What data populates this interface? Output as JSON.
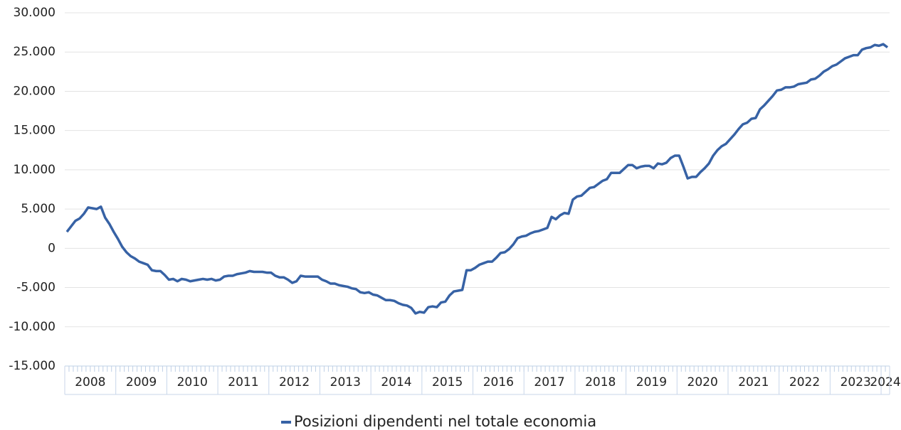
{
  "chart_data": {
    "type": "line",
    "categories": [
      "2008",
      null,
      null,
      null,
      null,
      null,
      null,
      null,
      null,
      null,
      null,
      null,
      "2009",
      null,
      null,
      null,
      null,
      null,
      null,
      null,
      null,
      null,
      null,
      null,
      "2010",
      null,
      null,
      null,
      null,
      null,
      null,
      null,
      null,
      null,
      null,
      null,
      "2011",
      null,
      null,
      null,
      null,
      null,
      null,
      null,
      null,
      null,
      null,
      null,
      "2012",
      null,
      null,
      null,
      null,
      null,
      null,
      null,
      null,
      null,
      null,
      null,
      "2013",
      null,
      null,
      null,
      null,
      null,
      null,
      null,
      null,
      null,
      null,
      null,
      "2014",
      null,
      null,
      null,
      null,
      null,
      null,
      null,
      null,
      null,
      null,
      null,
      "2015",
      null,
      null,
      null,
      null,
      null,
      null,
      null,
      null,
      null,
      null,
      null,
      "2016",
      null,
      null,
      null,
      null,
      null,
      null,
      null,
      null,
      null,
      null,
      null,
      "2017",
      null,
      null,
      null,
      null,
      null,
      null,
      null,
      null,
      null,
      null,
      null,
      "2018",
      null,
      null,
      null,
      null,
      null,
      null,
      null,
      null,
      null,
      null,
      null,
      "2019",
      null,
      null,
      null,
      null,
      null,
      null,
      null,
      null,
      null,
      null,
      null,
      "2020",
      null,
      null,
      null,
      null,
      null,
      null,
      null,
      null,
      null,
      null,
      null,
      "2021",
      null,
      null,
      null,
      null,
      null,
      null,
      null,
      null,
      null,
      null,
      null,
      "2022",
      null,
      null,
      null,
      null,
      null,
      null,
      null,
      null,
      null,
      null,
      null,
      "2023",
      null,
      null,
      null,
      null,
      null,
      null,
      null,
      null,
      null,
      null,
      null,
      "2024",
      null
    ],
    "series": [
      {
        "name": "Posizioni dipendenti nel totale economia",
        "color": "#3762a5",
        "values": [
          2100,
          2800,
          3500,
          3800,
          4400,
          5200,
          5100,
          5000,
          5300,
          3900,
          3100,
          2100,
          1200,
          200,
          -500,
          -1000,
          -1300,
          -1700,
          -1900,
          -2100,
          -2800,
          -2900,
          -2900,
          -3400,
          -4000,
          -3900,
          -4200,
          -3900,
          -4000,
          -4200,
          -4100,
          -4000,
          -3900,
          -4000,
          -3900,
          -4100,
          -4000,
          -3600,
          -3500,
          -3500,
          -3300,
          -3200,
          -3100,
          -2900,
          -3000,
          -3000,
          -3000,
          -3100,
          -3100,
          -3500,
          -3700,
          -3700,
          -4000,
          -4400,
          -4200,
          -3500,
          -3600,
          -3600,
          -3600,
          -3600,
          -4000,
          -4200,
          -4500,
          -4500,
          -4700,
          -4800,
          -4900,
          -5100,
          -5200,
          -5600,
          -5700,
          -5600,
          -5900,
          -6000,
          -6300,
          -6600,
          -6600,
          -6700,
          -7000,
          -7200,
          -7300,
          -7600,
          -8300,
          -8100,
          -8200,
          -7500,
          -7400,
          -7500,
          -6900,
          -6800,
          -6000,
          -5500,
          -5400,
          -5300,
          -2800,
          -2800,
          -2500,
          -2100,
          -1900,
          -1700,
          -1700,
          -1200,
          -600,
          -500,
          -100,
          500,
          1300,
          1500,
          1600,
          1900,
          2100,
          2200,
          2400,
          2600,
          4000,
          3700,
          4200,
          4500,
          4400,
          6200,
          6600,
          6700,
          7200,
          7700,
          7800,
          8200,
          8600,
          8800,
          9600,
          9600,
          9600,
          10100,
          10600,
          10600,
          10200,
          10400,
          10500,
          10500,
          10200,
          10800,
          10700,
          10900,
          11500,
          11800,
          11800,
          10400,
          8900,
          9100,
          9100,
          9700,
          10200,
          10800,
          11800,
          12500,
          13000,
          13300,
          13900,
          14500,
          15200,
          15800,
          16000,
          16500,
          16600,
          17700,
          18200,
          18800,
          19400,
          20100,
          20200,
          20500,
          20500,
          20600,
          20900,
          21000,
          21100,
          21500,
          21600,
          22000,
          22500,
          22800,
          23200,
          23400,
          23800,
          24200,
          24400,
          24600,
          24600,
          25300,
          25500,
          25600,
          25900,
          25800,
          26000,
          25600
        ]
      }
    ],
    "ylim": [
      -15000,
      30000
    ],
    "yticks": [
      {
        "value": -15000,
        "label": "-15.000"
      },
      {
        "value": -10000,
        "label": "-10.000"
      },
      {
        "value": -5000,
        "label": "-5.000"
      },
      0,
      {
        "value": 5000,
        "label": "5.000"
      },
      {
        "value": 10000,
        "label": "10.000"
      },
      {
        "value": 15000,
        "label": "15.000"
      },
      {
        "value": 20000,
        "label": "20.000"
      },
      {
        "value": 25000,
        "label": "25.000"
      },
      {
        "value": 30000,
        "label": "30.000"
      }
    ],
    "grid": true,
    "legend": "bottom"
  }
}
